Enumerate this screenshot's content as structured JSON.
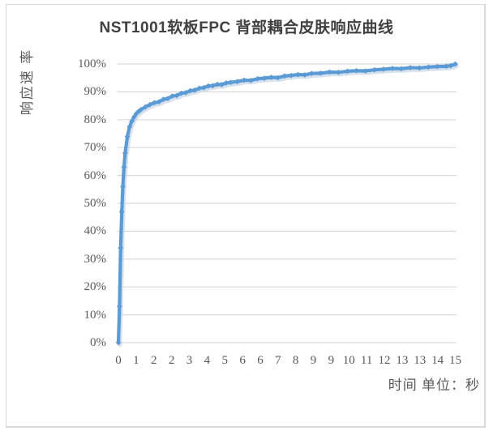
{
  "window": {
    "background_color": "#ffffff",
    "frame_border_color": "#d9d9d9"
  },
  "chart_data": {
    "type": "line",
    "title": "NST1001软板FPC 背部耦合皮肤响应曲线",
    "ylabel": "响应速 率",
    "xlabel": "时间 单位：秒",
    "legend": "none",
    "grid": "horizontal",
    "line_color": "#5B9BD5",
    "line_shadow_color": "#c9d7e8",
    "gridline_color": "#d9d9d9",
    "title_color": "#404040",
    "tick_color": "#595959",
    "ylim": [
      0,
      100
    ],
    "x_range_seconds": [
      0,
      15
    ],
    "y_tick_labels": [
      "0%",
      "10%",
      "20%",
      "30%",
      "40%",
      "50%",
      "60%",
      "70%",
      "80%",
      "90%",
      "100%"
    ],
    "x_tick_labels": [
      "0",
      "1",
      "2",
      "2",
      "3",
      "4",
      "5",
      "6",
      "6",
      "7",
      "8",
      "9",
      "9",
      "10",
      "11",
      "12",
      "13",
      "13",
      "14",
      "15"
    ],
    "series": [
      {
        "name": "响应速率",
        "points": [
          [
            0.0,
            0
          ],
          [
            0.05,
            13
          ],
          [
            0.1,
            34
          ],
          [
            0.15,
            47
          ],
          [
            0.2,
            56
          ],
          [
            0.25,
            63
          ],
          [
            0.3,
            68
          ],
          [
            0.4,
            74
          ],
          [
            0.5,
            77.5
          ],
          [
            0.6,
            79.5
          ],
          [
            0.7,
            81
          ],
          [
            0.8,
            82.2
          ],
          [
            0.9,
            83
          ],
          [
            1.0,
            83.6
          ],
          [
            1.2,
            84.6
          ],
          [
            1.4,
            85.4
          ],
          [
            1.6,
            86.1
          ],
          [
            1.8,
            86.4
          ],
          [
            2.0,
            87.3
          ],
          [
            2.2,
            87.6
          ],
          [
            2.4,
            88.5
          ],
          [
            2.6,
            88.7
          ],
          [
            2.8,
            89.5
          ],
          [
            3.0,
            89.7
          ],
          [
            3.2,
            90.4
          ],
          [
            3.4,
            90.6
          ],
          [
            3.6,
            91.3
          ],
          [
            3.8,
            91.5
          ],
          [
            4.0,
            92.1
          ],
          [
            4.2,
            92.2
          ],
          [
            4.4,
            92.7
          ],
          [
            4.6,
            92.6
          ],
          [
            4.8,
            93.2
          ],
          [
            5.0,
            93.4
          ],
          [
            5.3,
            93.7
          ],
          [
            5.6,
            94.2
          ],
          [
            5.9,
            94.1
          ],
          [
            6.2,
            94.7
          ],
          [
            6.5,
            94.9
          ],
          [
            6.8,
            95.2
          ],
          [
            7.1,
            95.1
          ],
          [
            7.4,
            95.7
          ],
          [
            7.7,
            95.9
          ],
          [
            8.0,
            96.2
          ],
          [
            8.3,
            96.1
          ],
          [
            8.6,
            96.6
          ],
          [
            9.0,
            96.7
          ],
          [
            9.4,
            97.1
          ],
          [
            9.8,
            97.0
          ],
          [
            10.2,
            97.4
          ],
          [
            10.6,
            97.6
          ],
          [
            11.0,
            97.5
          ],
          [
            11.4,
            97.9
          ],
          [
            11.8,
            98.1
          ],
          [
            12.2,
            98.4
          ],
          [
            12.6,
            98.3
          ],
          [
            13.0,
            98.7
          ],
          [
            13.4,
            98.6
          ],
          [
            13.8,
            98.9
          ],
          [
            14.2,
            99.1
          ],
          [
            14.6,
            99.2
          ],
          [
            14.8,
            99.4
          ],
          [
            15.0,
            100.0
          ]
        ]
      }
    ]
  }
}
